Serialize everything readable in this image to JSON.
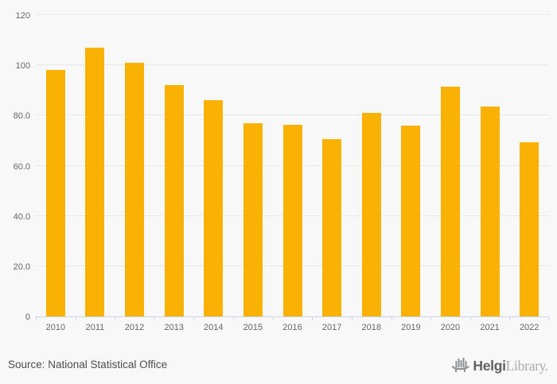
{
  "chart_data": {
    "type": "bar",
    "title": "",
    "xlabel": "",
    "ylabel": "",
    "categories": [
      "2010",
      "2011",
      "2012",
      "2013",
      "2014",
      "2015",
      "2016",
      "2017",
      "2018",
      "2019",
      "2020",
      "2021",
      "2022"
    ],
    "values": [
      98.0,
      107.0,
      101.0,
      92.0,
      86.0,
      77.0,
      76.4,
      70.6,
      81.0,
      76.0,
      91.6,
      83.5,
      69.4
    ],
    "ylim": [
      0,
      120
    ],
    "ytick_values": [
      0,
      20,
      40,
      60,
      80,
      100,
      120
    ],
    "ytick_labels": [
      "0",
      "20.0",
      "40.0",
      "60.0",
      "80.0",
      "100",
      "120"
    ],
    "grid": true,
    "legend": false,
    "bar_color": "#f9b104"
  },
  "colors": {
    "background": "#f8f8f8",
    "bar": "#f9b104",
    "gridline": "#e7e7e7",
    "axis_line": "#ccd6eb",
    "axis_label": "#666666",
    "source_text": "#4d4d4d",
    "logo_dark": "#5f6062",
    "logo_light": "#a9abad"
  },
  "footer": {
    "source": "Source: National Statistical Office",
    "logo_bold": "Helgi",
    "logo_light": "Library."
  }
}
